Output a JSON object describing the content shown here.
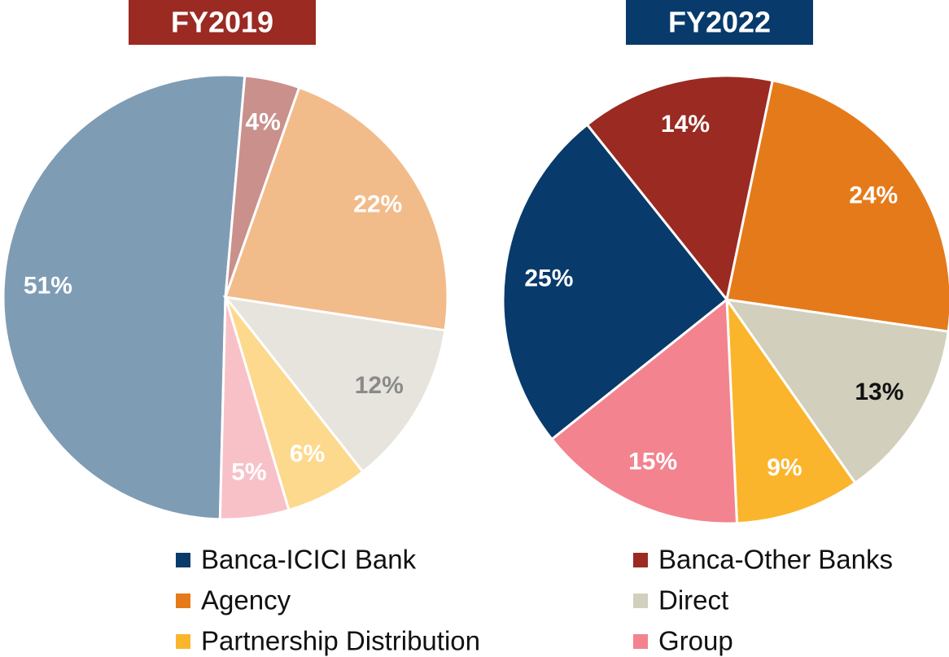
{
  "chart_data": [
    {
      "type": "pie",
      "title": "FY2019",
      "title_color": "#9a2a22",
      "values": [
        51,
        4,
        22,
        12,
        6,
        5
      ],
      "value_labels": [
        "51%",
        "4%",
        "22%",
        "12%",
        "6%",
        "5%"
      ],
      "colors": [
        "#7f9cb5",
        "#c9908c",
        "#f2bb8a",
        "#e6e4dc",
        "#fdd98e",
        "#f8c1c8"
      ],
      "label_colors": [
        "#ffffff",
        "#ffffff",
        "#ffffff",
        "#8a8a8a",
        "#ffffff",
        "#ffffff"
      ]
    },
    {
      "type": "pie",
      "title": "FY2022",
      "title_color": "#083a6b",
      "values": [
        25,
        14,
        24,
        13,
        9,
        15
      ],
      "value_labels": [
        "25%",
        "14%",
        "24%",
        "13%",
        "9%",
        "15%"
      ],
      "colors": [
        "#083a6b",
        "#9a2a22",
        "#e57a1a",
        "#d3cfbd",
        "#fbb52c",
        "#f2838f"
      ],
      "label_colors": [
        "#ffffff",
        "#ffffff",
        "#ffffff",
        "#111111",
        "#ffffff",
        "#ffffff"
      ]
    }
  ],
  "legend": {
    "categories": [
      "Banca-ICICI Bank",
      "Banca-Other Banks",
      "Agency",
      "Direct",
      "Partnership Distribution",
      "Group"
    ],
    "colors": [
      "#083a6b",
      "#9a2a22",
      "#e57a1a",
      "#d3cfbd",
      "#fbb52c",
      "#f2838f"
    ]
  }
}
